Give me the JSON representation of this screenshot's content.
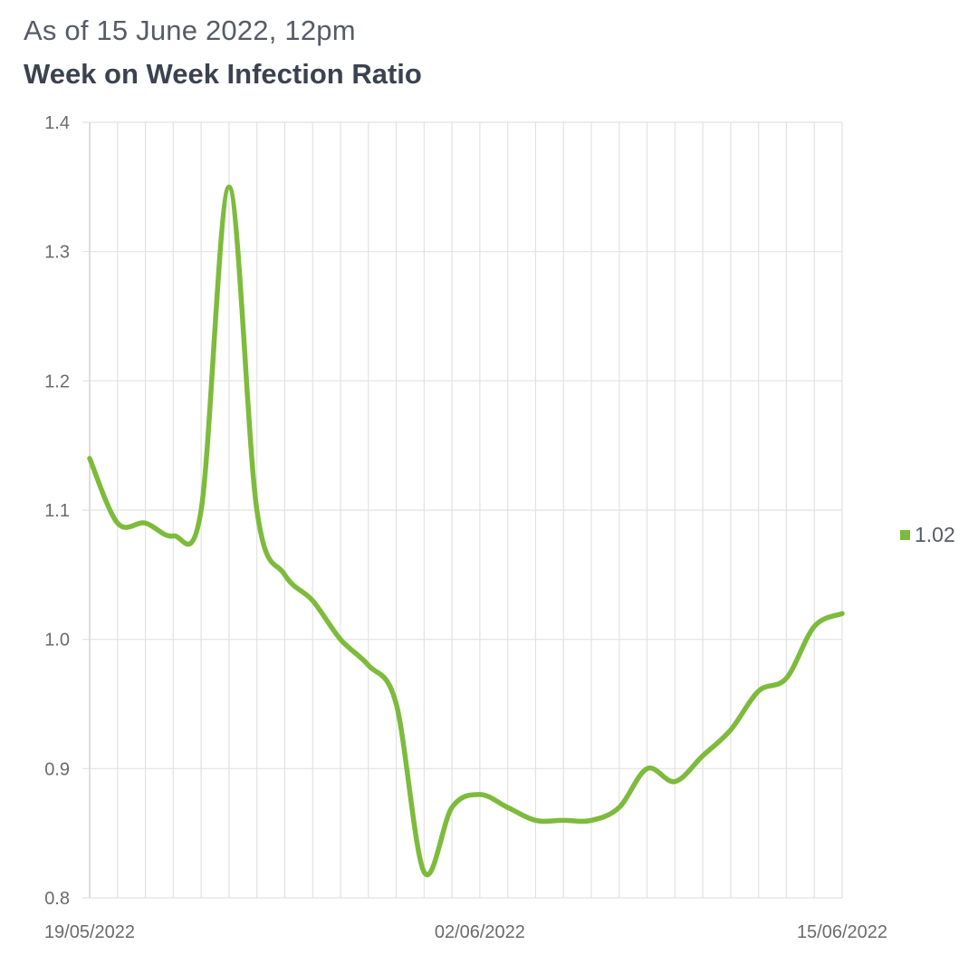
{
  "header": {
    "subtitle": "As of 15 June 2022, 12pm",
    "title": "Week on Week Infection Ratio"
  },
  "legend": {
    "label": "1.02",
    "color": "#7dbb3c"
  },
  "chart_data": {
    "type": "line",
    "title": "Week on Week Infection Ratio",
    "subtitle": "As of 15 June 2022, 12pm",
    "xlabel": "",
    "ylabel": "",
    "x": [
      "19/05/2022",
      "20/05/2022",
      "21/05/2022",
      "22/05/2022",
      "23/05/2022",
      "24/05/2022",
      "25/05/2022",
      "26/05/2022",
      "27/05/2022",
      "28/05/2022",
      "29/05/2022",
      "30/05/2022",
      "31/05/2022",
      "01/06/2022",
      "02/06/2022",
      "03/06/2022",
      "04/06/2022",
      "05/06/2022",
      "06/06/2022",
      "07/06/2022",
      "08/06/2022",
      "09/06/2022",
      "10/06/2022",
      "11/06/2022",
      "12/06/2022",
      "13/06/2022",
      "14/06/2022",
      "15/06/2022"
    ],
    "x_tick_labels": [
      "19/05/2022",
      "02/06/2022",
      "15/06/2022"
    ],
    "x_tick_indices": [
      0,
      14,
      27
    ],
    "series": [
      {
        "name": "1.02",
        "color": "#7dbb3c",
        "values": [
          1.14,
          1.09,
          1.09,
          1.08,
          1.1,
          1.35,
          1.1,
          1.05,
          1.03,
          1.0,
          0.98,
          0.95,
          0.82,
          0.87,
          0.88,
          0.87,
          0.86,
          0.86,
          0.86,
          0.87,
          0.9,
          0.89,
          0.91,
          0.93,
          0.96,
          0.97,
          1.01,
          1.02
        ]
      }
    ],
    "yticks": [
      0.8,
      0.9,
      1.0,
      1.1,
      1.2,
      1.3,
      1.4
    ],
    "ytick_labels": [
      "0.8",
      "0.9",
      "1.0",
      "1.1",
      "1.2",
      "1.3",
      "1.4"
    ],
    "ylim": [
      0.8,
      1.4
    ],
    "grid": true,
    "legend_position": "right"
  }
}
